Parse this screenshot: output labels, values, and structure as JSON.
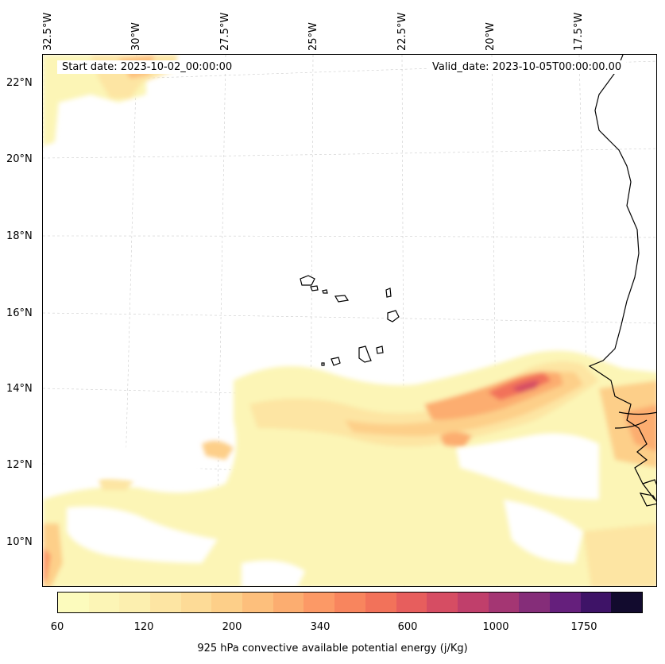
{
  "annotations": {
    "start_date": "Start date: 2023-10-02_00:00:00",
    "valid_date": "Valid_date: 2023-10-05T00:00:00.00"
  },
  "longitude_labels": [
    "32.5°W",
    "30°W",
    "27.5°W",
    "25°W",
    "22.5°W",
    "20°W",
    "17.5°W"
  ],
  "latitude_labels": [
    "22°N",
    "20°N",
    "18°N",
    "16°N",
    "14°N",
    "12°N",
    "10°N"
  ],
  "colorbar": {
    "label": "925 hPa convective available potential energy (j/Kg)",
    "tick_labels": [
      "60",
      "120",
      "200",
      "340",
      "600",
      "1000",
      "1750"
    ],
    "colors": [
      "#fcfbbd",
      "#fcf5b6",
      "#fcefaf",
      "#fde5a3",
      "#fddb97",
      "#fdcf89",
      "#fdbf7c",
      "#fcad70",
      "#fc9966",
      "#f8855e",
      "#f2725a",
      "#e75e5d",
      "#d64d63",
      "#c03f6b",
      "#a43673",
      "#852d79",
      "#651f7c",
      "#3e1367",
      "#120b2e"
    ]
  }
}
